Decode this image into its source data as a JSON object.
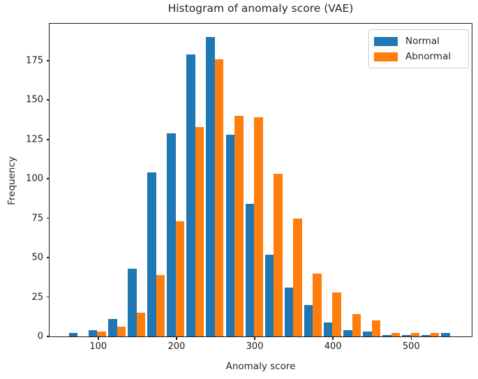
{
  "figure": {
    "background": "#ffffff",
    "axes_edge_color": "#1a1a1a",
    "text_color": "#262626"
  },
  "chart_data": {
    "type": "bar",
    "variant": "grouped-histogram",
    "title": "Histogram of anomaly score (VAE)",
    "xlabel": "Anomaly score",
    "ylabel": "Frequency",
    "grid": false,
    "legend_position": "upper right",
    "bin_start": 61.3,
    "bin_width": 25.04,
    "bin_count": 20,
    "series": [
      {
        "name": "Normal",
        "color": "#1f77b4",
        "values": [
          2,
          4,
          11,
          43,
          104,
          129,
          179,
          190,
          128,
          84,
          52,
          31,
          20,
          9,
          4,
          3,
          1,
          1,
          1,
          2
        ]
      },
      {
        "name": "Abnormal",
        "color": "#ff7f0e",
        "values": [
          0,
          3,
          6,
          15,
          39,
          73,
          133,
          176,
          140,
          139,
          103,
          75,
          40,
          28,
          14,
          10,
          2,
          2,
          2,
          0
        ]
      }
    ],
    "xticks": [
      100,
      200,
      300,
      400,
      500
    ],
    "yticks": [
      0,
      25,
      50,
      75,
      100,
      125,
      150,
      175
    ],
    "xlim": [
      37.8,
      577.3
    ],
    "ylim": [
      0,
      198.4
    ]
  }
}
